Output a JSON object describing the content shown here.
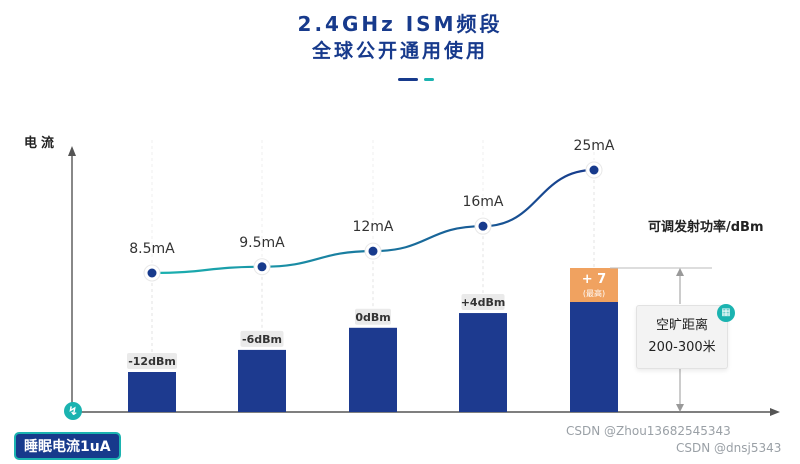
{
  "header": {
    "title_line1": "2.4GHz ISM频段",
    "title_line2": "全球公开通用使用"
  },
  "chart_data": {
    "type": "bar",
    "ylabel": "电流",
    "power_axis_label": "可调发射功率/dBm",
    "categories": [
      "-12dBm",
      "-6dBm",
      "0dBm",
      "+4dBm",
      "+7"
    ],
    "series": [
      {
        "values": [
          -12,
          -6,
          0,
          4,
          7
        ]
      }
    ],
    "current_line": {
      "labels": [
        "8.5mA",
        "9.5mA",
        "12mA",
        "16mA",
        "25mA"
      ],
      "values": [
        8.5,
        9.5,
        12,
        16,
        25
      ]
    },
    "max_marker": {
      "value": "+ 7",
      "note": "(最高)"
    },
    "colors": {
      "bar": "#1d3a8f",
      "max_segment": "#f0a260",
      "line_start": "#1bb3b0",
      "line_end": "#173a8c",
      "accent": "#1bb3b0"
    }
  },
  "range_note": {
    "line1": "空旷距离",
    "line2": "200-300米",
    "icon": "ruler-icon"
  },
  "sleep_badge": "睡眠电流1uA",
  "bolt_icon": "bolt-icon",
  "watermarks": [
    "CSDN @Zhou13682545343",
    "CSDN @dnsj5343"
  ]
}
